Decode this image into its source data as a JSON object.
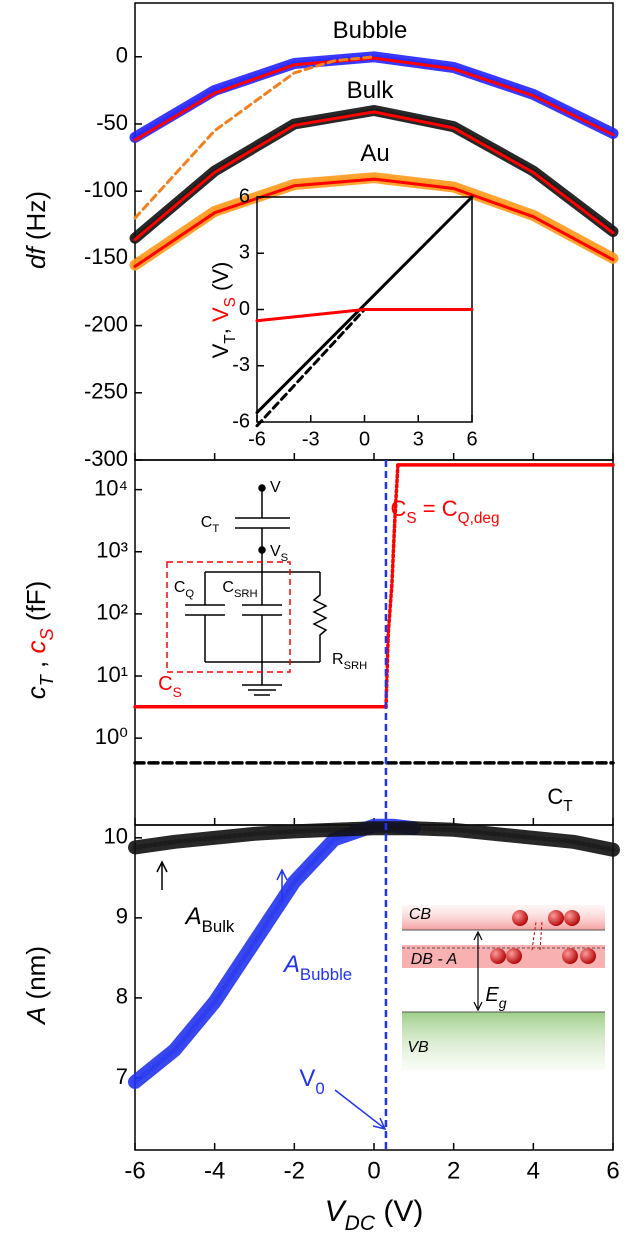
{
  "chart_data": [
    {
      "type": "line",
      "ylabel": {
        "parts": [
          {
            "text": "df",
            "italic": true
          },
          {
            "text": " (Hz)"
          }
        ]
      },
      "xlim": [
        -6,
        6
      ],
      "ylim": [
        -300,
        40
      ],
      "yticks": [
        0,
        -50,
        -100,
        -150,
        -200,
        -250,
        -300
      ],
      "x": [
        -6,
        -4,
        -2,
        0,
        2,
        4,
        6
      ],
      "series": [
        {
          "color": "#2222ff",
          "marker": true,
          "values": [
            -60,
            -25,
            -5,
            0,
            -8,
            -28,
            -57
          ]
        },
        {
          "color": "#ff0000",
          "values": [
            -62,
            -27,
            -6,
            -1,
            -9,
            -29,
            -58
          ]
        },
        {
          "color": "#111111",
          "marker": true,
          "values": [
            -135,
            -85,
            -50,
            -40,
            -52,
            -85,
            -130
          ]
        },
        {
          "color": "#ff0000",
          "values": [
            -136,
            -86,
            -51,
            -41,
            -53,
            -86,
            -131
          ]
        },
        {
          "color": "#ff9a1a",
          "marker": true,
          "values": [
            -155,
            -115,
            -95,
            -90,
            -97,
            -118,
            -150
          ]
        },
        {
          "color": "#ff0000",
          "values": [
            -156,
            -116,
            -96,
            -91,
            -98,
            -119,
            -151
          ]
        },
        {
          "color": "#f08020",
          "dash": true,
          "x": [
            -6,
            -4,
            -2,
            -1,
            0
          ],
          "values": [
            -120,
            -55,
            -12,
            -3,
            0
          ]
        }
      ],
      "annotations": [
        {
          "parts": [
            {
              "text": "Bubble"
            }
          ]
        },
        {
          "parts": [
            {
              "text": "Bulk"
            }
          ]
        },
        {
          "parts": [
            {
              "text": "Au"
            }
          ]
        }
      ]
    },
    {
      "type": "line",
      "ylabel": {
        "parts": [
          {
            "text": "V"
          },
          {
            "text": "T",
            "sub": true
          },
          {
            "text": ", "
          },
          {
            "text": "V",
            "color": "#ff0000"
          },
          {
            "text": "S",
            "sub": true,
            "color": "#ff0000"
          },
          {
            "text": " (V)"
          }
        ]
      },
      "xlim": [
        -6,
        6
      ],
      "ylim": [
        -6,
        6
      ],
      "xticks": [
        -6,
        -3,
        0,
        3,
        6
      ],
      "yticks": [
        -6,
        -3,
        0,
        3,
        6
      ],
      "series": [
        {
          "color": "#000000",
          "x": [
            -6,
            6
          ],
          "values": [
            -5.5,
            6
          ]
        },
        {
          "color": "#000000",
          "dash": true,
          "x": [
            -6,
            0
          ],
          "values": [
            -6.2,
            0
          ]
        },
        {
          "color": "#ff0000",
          "x": [
            -6,
            0,
            6
          ],
          "values": [
            -0.6,
            0,
            0
          ]
        }
      ]
    },
    {
      "type": "line",
      "log_scale": true,
      "ylabel": {
        "parts": [
          {
            "text": "c",
            "italic": true
          },
          {
            "text": "T",
            "sub": true,
            "italic": true
          },
          {
            "text": " , "
          },
          {
            "text": "c",
            "italic": true,
            "color": "#ff0000"
          },
          {
            "text": "S",
            "sub": true,
            "italic": true,
            "color": "#ff0000"
          },
          {
            "text": " (fF)"
          }
        ]
      },
      "xlim": [
        -6,
        6
      ],
      "ylim": [
        0.04,
        30000
      ],
      "yticks": [
        {
          "value": 1,
          "label": "10⁰"
        },
        {
          "value": 10,
          "label": "10¹"
        },
        {
          "value": 100,
          "label": "10²"
        },
        {
          "value": 1000,
          "label": "10³"
        },
        {
          "value": 10000,
          "label": "10⁴"
        }
      ],
      "series": [
        {
          "color": "#ff0000",
          "x": [
            -6,
            0.3
          ],
          "values": [
            3.2,
            3.2
          ]
        },
        {
          "color": "#ff0000",
          "dot": true,
          "x": [
            0.3,
            0.36,
            0.45,
            0.52,
            0.6
          ],
          "values": [
            3.2,
            50,
            300,
            3000,
            25000
          ]
        },
        {
          "color": "#ff0000",
          "x": [
            0.6,
            6
          ],
          "values": [
            25000,
            25000
          ]
        },
        {
          "color": "#000000",
          "dash": true,
          "x": [
            -6,
            6
          ],
          "values": [
            0.4,
            0.4
          ]
        }
      ],
      "annotations": [
        {
          "parts": [
            {
              "text": "C",
              "color": "#ff0000"
            },
            {
              "text": "S",
              "sub": true,
              "color": "#ff0000"
            },
            {
              "text": " = C",
              "color": "#ff0000"
            },
            {
              "text": "Q,deg",
              "sub": true,
              "color": "#ff0000"
            }
          ]
        },
        {
          "parts": [
            {
              "text": "C"
            },
            {
              "text": "T",
              "sub": true
            }
          ]
        },
        {
          "parts": [
            {
              "text": "V"
            }
          ]
        },
        {
          "parts": [
            {
              "text": "C"
            },
            {
              "text": "T",
              "sub": true
            }
          ]
        },
        {
          "parts": [
            {
              "text": "V"
            },
            {
              "text": "S",
              "sub": true
            }
          ]
        },
        {
          "parts": [
            {
              "text": "C"
            },
            {
              "text": "Q",
              "sub": true
            }
          ]
        },
        {
          "parts": [
            {
              "text": "C"
            },
            {
              "text": "SRH",
              "sub": true
            }
          ]
        },
        {
          "parts": [
            {
              "text": "R"
            },
            {
              "text": "SRH",
              "sub": true
            }
          ]
        },
        {
          "parts": [
            {
              "text": "C",
              "color": "#ff0000"
            },
            {
              "text": "S",
              "sub": true,
              "color": "#ff0000"
            }
          ]
        }
      ]
    },
    {
      "type": "line",
      "ylabel": {
        "parts": [
          {
            "text": "A",
            "italic": true
          },
          {
            "text": " (nm)"
          }
        ]
      },
      "xlabel": {
        "parts": [
          {
            "text": "V",
            "italic": true
          },
          {
            "text": "DC",
            "sub": true,
            "italic": true
          },
          {
            "text": " (V)"
          }
        ]
      },
      "xlim": [
        -6,
        6
      ],
      "ylim": [
        6.1,
        10.16
      ],
      "xticks": [
        -6,
        -4,
        -2,
        0,
        2,
        4,
        6
      ],
      "yticks": [
        7,
        8,
        9,
        10
      ],
      "v0": 0.3,
      "series": [
        {
          "color": "#2233ee",
          "marker": true,
          "x": [
            -6,
            -5,
            -4,
            -3,
            -2,
            -1,
            0,
            0.5,
            1
          ],
          "values": [
            6.95,
            7.35,
            7.95,
            8.7,
            9.45,
            9.98,
            10.15,
            10.15,
            10.12
          ]
        },
        {
          "color": "#111111",
          "marker": true,
          "x": [
            -6,
            -5,
            -4,
            -3,
            -2,
            -1,
            0,
            1,
            2,
            3,
            4,
            5,
            6
          ],
          "values": [
            9.88,
            9.95,
            10.0,
            10.05,
            10.08,
            10.1,
            10.12,
            10.12,
            10.1,
            10.05,
            10.0,
            9.95,
            9.85
          ]
        }
      ],
      "annotations": [
        {
          "parts": [
            {
              "text": "A",
              "italic": true
            },
            {
              "text": "Bulk",
              "sub": true
            }
          ]
        },
        {
          "parts": [
            {
              "text": "A",
              "italic": true,
              "color": "#2233ee"
            },
            {
              "text": "Bubble",
              "sub": true,
              "color": "#2233ee"
            }
          ]
        },
        {
          "parts": [
            {
              "text": "V",
              "color": "#2233ee"
            },
            {
              "text": "0",
              "sub": true,
              "color": "#2233ee"
            }
          ]
        },
        {
          "parts": [
            {
              "text": "CB",
              "italic": true
            }
          ]
        },
        {
          "parts": [
            {
              "text": "DB - A",
              "italic": true
            }
          ]
        },
        {
          "parts": [
            {
              "text": "E",
              "italic": true
            },
            {
              "text": "g",
              "sub": true,
              "italic": true
            }
          ]
        },
        {
          "parts": [
            {
              "text": "VB",
              "italic": true
            }
          ]
        }
      ]
    }
  ]
}
